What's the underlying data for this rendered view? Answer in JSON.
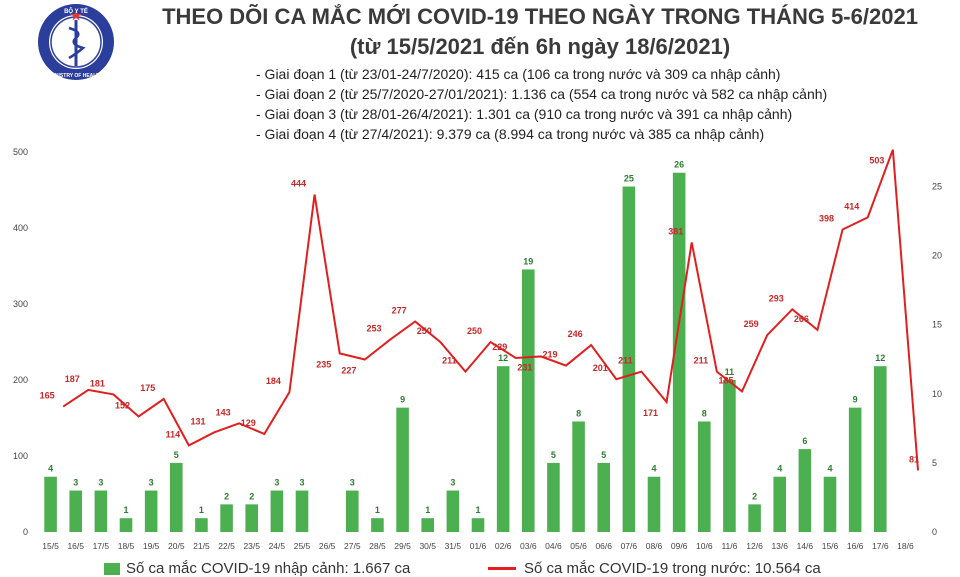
{
  "header": {
    "title_line1": "THEO DÕI CA MẮC MỚI COVID-19 THEO NGÀY TRONG THÁNG 5-6/2021",
    "title_line2": "(từ 15/5/2021 đến 6h ngày 18/6/2021)",
    "logo_text_top": "BỘ Y TẾ",
    "logo_text_bottom": "MINISTRY OF HEALTH"
  },
  "phases": [
    "- Giai đoạn 1 (từ 23/01-24/7/2020): 415 ca (106 ca trong nước và 309 ca nhập cảnh)",
    "- Giai đoạn 2 (từ 25/7/2020-27/01/2021): 1.136 ca (554 ca trong nước và 582 ca nhập cảnh)",
    "- Giai đoạn 3 (từ 28/01-26/4/2021): 1.301 ca (910 ca trong nước và 391 ca nhập cảnh)",
    "- Giai đoạn 4 (từ 27/4/2021): 9.379 ca (8.994 ca trong nước và 385 ca nhập cảnh)"
  ],
  "legend": {
    "bar_label": "Số ca mắc COVID-19 nhập cảnh: 1.667 ca",
    "line_label": "Số ca mắc COVID-19 trong nước: 10.564 ca"
  },
  "colors": {
    "bar": "#4caf50",
    "bar_label": "#2e7d32",
    "line": "#e02020",
    "line_label": "#c62828",
    "grid": "#dcdcdc",
    "logo_blue": "#2c3e9c"
  },
  "chart_data": {
    "type": "bar",
    "categories": [
      "15/5",
      "16/5",
      "17/5",
      "18/5",
      "19/5",
      "20/5",
      "21/5",
      "22/5",
      "23/5",
      "24/5",
      "25/5",
      "26/5",
      "27/5",
      "28/5",
      "29/5",
      "30/5",
      "31/5",
      "01/6",
      "02/6",
      "03/6",
      "04/6",
      "05/6",
      "06/6",
      "07/6",
      "08/6",
      "09/6",
      "10/6",
      "11/6",
      "12/6",
      "13/6",
      "14/6",
      "15/6",
      "16/6",
      "17/6",
      "18/6"
    ],
    "series": [
      {
        "name": "Số ca mắc COVID-19 nhập cảnh: 1.667 ca",
        "type": "bar",
        "axis": "right",
        "values": [
          4,
          3,
          3,
          1,
          3,
          5,
          1,
          2,
          2,
          3,
          3,
          null,
          3,
          1,
          9,
          1,
          3,
          1,
          12,
          19,
          5,
          8,
          5,
          25,
          4,
          26,
          8,
          11,
          2,
          4,
          6,
          4,
          9,
          12,
          null
        ]
      },
      {
        "name": "Số ca mắc COVID-19 trong nước: 10.564 ca",
        "type": "line",
        "axis": "left",
        "values": [
          165,
          187,
          181,
          152,
          175,
          114,
          131,
          143,
          129,
          184,
          444,
          235,
          227,
          253,
          277,
          250,
          211,
          250,
          229,
          231,
          219,
          246,
          201,
          211,
          171,
          381,
          211,
          185,
          259,
          293,
          266,
          398,
          414,
          503,
          81
        ]
      }
    ],
    "left_ylim": [
      0,
      500
    ],
    "left_ticks": [
      0,
      100,
      200,
      300,
      400,
      500
    ],
    "right_ylim": [
      0,
      27.5
    ],
    "right_ticks": [
      0,
      5,
      10,
      15,
      20,
      25
    ],
    "grid": false,
    "legend_position": "bottom"
  }
}
